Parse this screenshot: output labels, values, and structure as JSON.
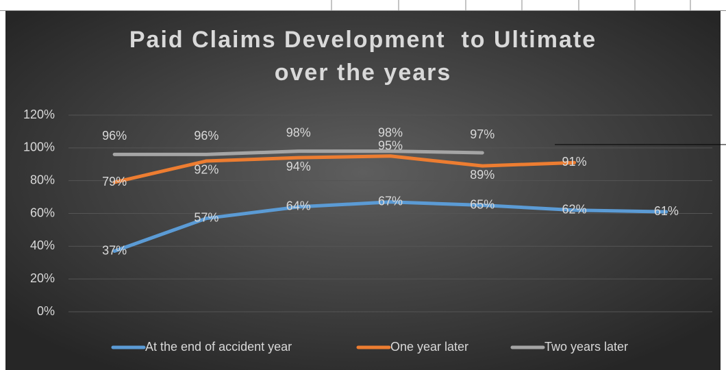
{
  "chart_data": {
    "type": "line",
    "title": [
      "Paid Claims Development  to Ultimate",
      "over the years"
    ],
    "categories": [
      null,
      null,
      null,
      null,
      null,
      null,
      null
    ],
    "series": [
      {
        "name": "At the end of accident year",
        "color": "#5b9bd5",
        "values": [
          37,
          57,
          64,
          67,
          65,
          62,
          61
        ],
        "value_labels": [
          "37%",
          "57%",
          "64%",
          "67%",
          "65%",
          "62%",
          "61%"
        ]
      },
      {
        "name": "One year later",
        "color": "#ed7d31",
        "values": [
          79,
          92,
          94,
          95,
          89,
          91,
          null
        ],
        "value_labels": [
          "79%",
          "92%",
          "94%",
          "95%",
          "89%",
          "91%",
          null
        ]
      },
      {
        "name": "Two years later",
        "color": "#a5a5a5",
        "values": [
          96,
          96,
          98,
          98,
          97,
          null,
          null
        ],
        "value_labels": [
          "96%",
          "96%",
          "98%",
          "98%",
          "97%",
          null,
          null
        ]
      }
    ],
    "ylim": [
      0,
      120
    ],
    "yticks": [
      {
        "value": 0,
        "label": "0%"
      },
      {
        "value": 20,
        "label": "20%"
      },
      {
        "value": 40,
        "label": "40%"
      },
      {
        "value": 60,
        "label": "60%"
      },
      {
        "value": 80,
        "label": "80%"
      },
      {
        "value": 100,
        "label": "100%"
      },
      {
        "value": 120,
        "label": "120%"
      }
    ],
    "grid": true,
    "legend": "bottom"
  }
}
